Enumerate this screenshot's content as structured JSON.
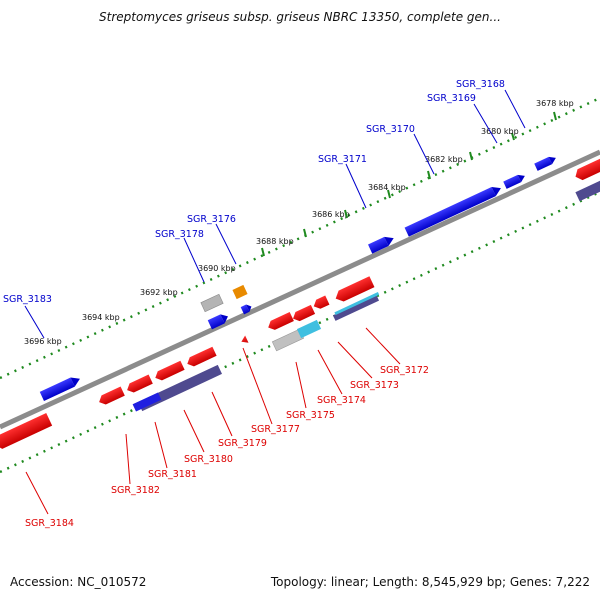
{
  "header": {
    "title": "Streptomyces griseus subsp. griseus NBRC 13350, complete gen..."
  },
  "footer": {
    "accession": "Accession: NC_010572",
    "summary": "Topology: linear; Length: 8,545,929 bp; Genes: 7,222"
  },
  "colors": {
    "backbone": "#808080",
    "ruler_dots": "#1f8a1f",
    "forward_gene": "#0000ee",
    "reverse_gene": "#ee0000",
    "label_forward": "#0000cc",
    "label_reverse": "#dd0000",
    "track_purple": "#4f4a8f",
    "track_gray": "#b0b0b0",
    "track_cyan": "#3fbfe0",
    "track_orange": "#e88a00"
  },
  "ruler_labels": [
    {
      "text": "3678 kbp"
    },
    {
      "text": "3680 kbp"
    },
    {
      "text": "3682 kbp"
    },
    {
      "text": "3684 kbp"
    },
    {
      "text": "3686 kbp"
    },
    {
      "text": "3688 kbp"
    },
    {
      "text": "3690 kbp"
    },
    {
      "text": "3692 kbp"
    },
    {
      "text": "3694 kbp"
    },
    {
      "text": "3696 kbp"
    }
  ],
  "forward_labels": [
    {
      "text": "SGR_3168"
    },
    {
      "text": "SGR_3169"
    },
    {
      "text": "SGR_3170"
    },
    {
      "text": "SGR_3171"
    },
    {
      "text": "SGR_3176"
    },
    {
      "text": "SGR_3178"
    },
    {
      "text": "SGR_3183"
    }
  ],
  "reverse_labels": [
    {
      "text": "SGR_3172"
    },
    {
      "text": "SGR_3173"
    },
    {
      "text": "SGR_3174"
    },
    {
      "text": "SGR_3175"
    },
    {
      "text": "SGR_3177"
    },
    {
      "text": "SGR_3179"
    },
    {
      "text": "SGR_3180"
    },
    {
      "text": "SGR_3181"
    },
    {
      "text": "SGR_3182"
    },
    {
      "text": "SGR_3184"
    }
  ]
}
